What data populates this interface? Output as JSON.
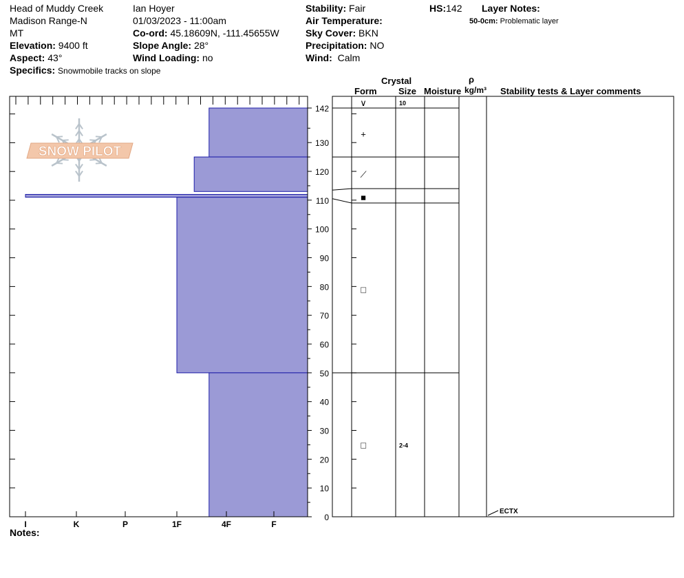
{
  "site": {
    "location": "Head of Muddy Creek",
    "range": "Madison Range-N",
    "state": "MT",
    "elevation_label": "Elevation:",
    "elevation": "9400 ft",
    "aspect_label": "Aspect:",
    "aspect": "43°",
    "specifics_label": "Specifics:",
    "specifics": "Snowmobile tracks on slope"
  },
  "observer": {
    "name": "Ian Hoyer",
    "datetime": "01/03/2023 - 11:00am",
    "coord_label": "Co-ord:",
    "coord": "45.18609N, -111.45655W",
    "slope_label": "Slope Angle:",
    "slope": "28°",
    "wind_loading_label": "Wind Loading:",
    "wind_loading": "no"
  },
  "conditions": {
    "stability_label": "Stability:",
    "stability": "Fair",
    "air_temp_label": "Air Temperature:",
    "air_temp": "",
    "sky_label": "Sky Cover:",
    "sky": "BKN",
    "precip_label": "Precipitation:",
    "precip": "NO",
    "wind_label": "Wind:",
    "wind": "Calm"
  },
  "hs": {
    "label": "HS:",
    "value": "142"
  },
  "layer_notes": {
    "label": "Layer Notes:",
    "entry_depth": "50-0cm:",
    "entry_text": "Problematic layer"
  },
  "logo": {
    "text": "SNOW PILOT"
  },
  "notes_label": "Notes:",
  "table_headers": {
    "crystal": "Crystal",
    "form": "Form",
    "size": "Size",
    "moisture": "Moisture",
    "rho": "ρ",
    "density_unit": "kg/m³",
    "stability": "Stability tests & Layer comments"
  },
  "accent_color": "#9b9ad6",
  "chart_data": {
    "type": "bar",
    "title": "",
    "orientation": "horizontal",
    "x_categories": [
      "I",
      "K",
      "P",
      "1F",
      "4F",
      "F"
    ],
    "y_ticks": [
      0,
      10,
      20,
      30,
      40,
      50,
      60,
      70,
      80,
      90,
      100,
      110,
      120,
      130,
      142
    ],
    "ylim": [
      0,
      142
    ],
    "hardness_layers": [
      {
        "bottom": 125,
        "top": 142,
        "hardness": 4.65
      },
      {
        "bottom": 113,
        "top": 125,
        "hardness": 4.35
      },
      {
        "bottom": 111,
        "top": 112,
        "hardness": 1.0
      },
      {
        "bottom": 50,
        "top": 111,
        "hardness": 4.0
      },
      {
        "bottom": 0,
        "top": 50,
        "hardness": 4.65
      }
    ],
    "layer_boundaries": [
      142,
      125,
      114,
      109,
      50
    ],
    "crystal_forms": [
      {
        "height": 133,
        "symbol": "+"
      },
      {
        "height": 119,
        "symbol": "⟋"
      },
      {
        "height": 111,
        "symbol": "■"
      },
      {
        "height": 79,
        "symbol": "□"
      },
      {
        "height": 25,
        "symbol": "□"
      }
    ],
    "surface_symbol": "∨",
    "crystal_sizes": [
      {
        "height": 142,
        "size": "10"
      },
      {
        "height": 25,
        "size": "2-4"
      }
    ],
    "stability_tests": [
      {
        "height": 0,
        "label": "ECTX"
      }
    ]
  }
}
